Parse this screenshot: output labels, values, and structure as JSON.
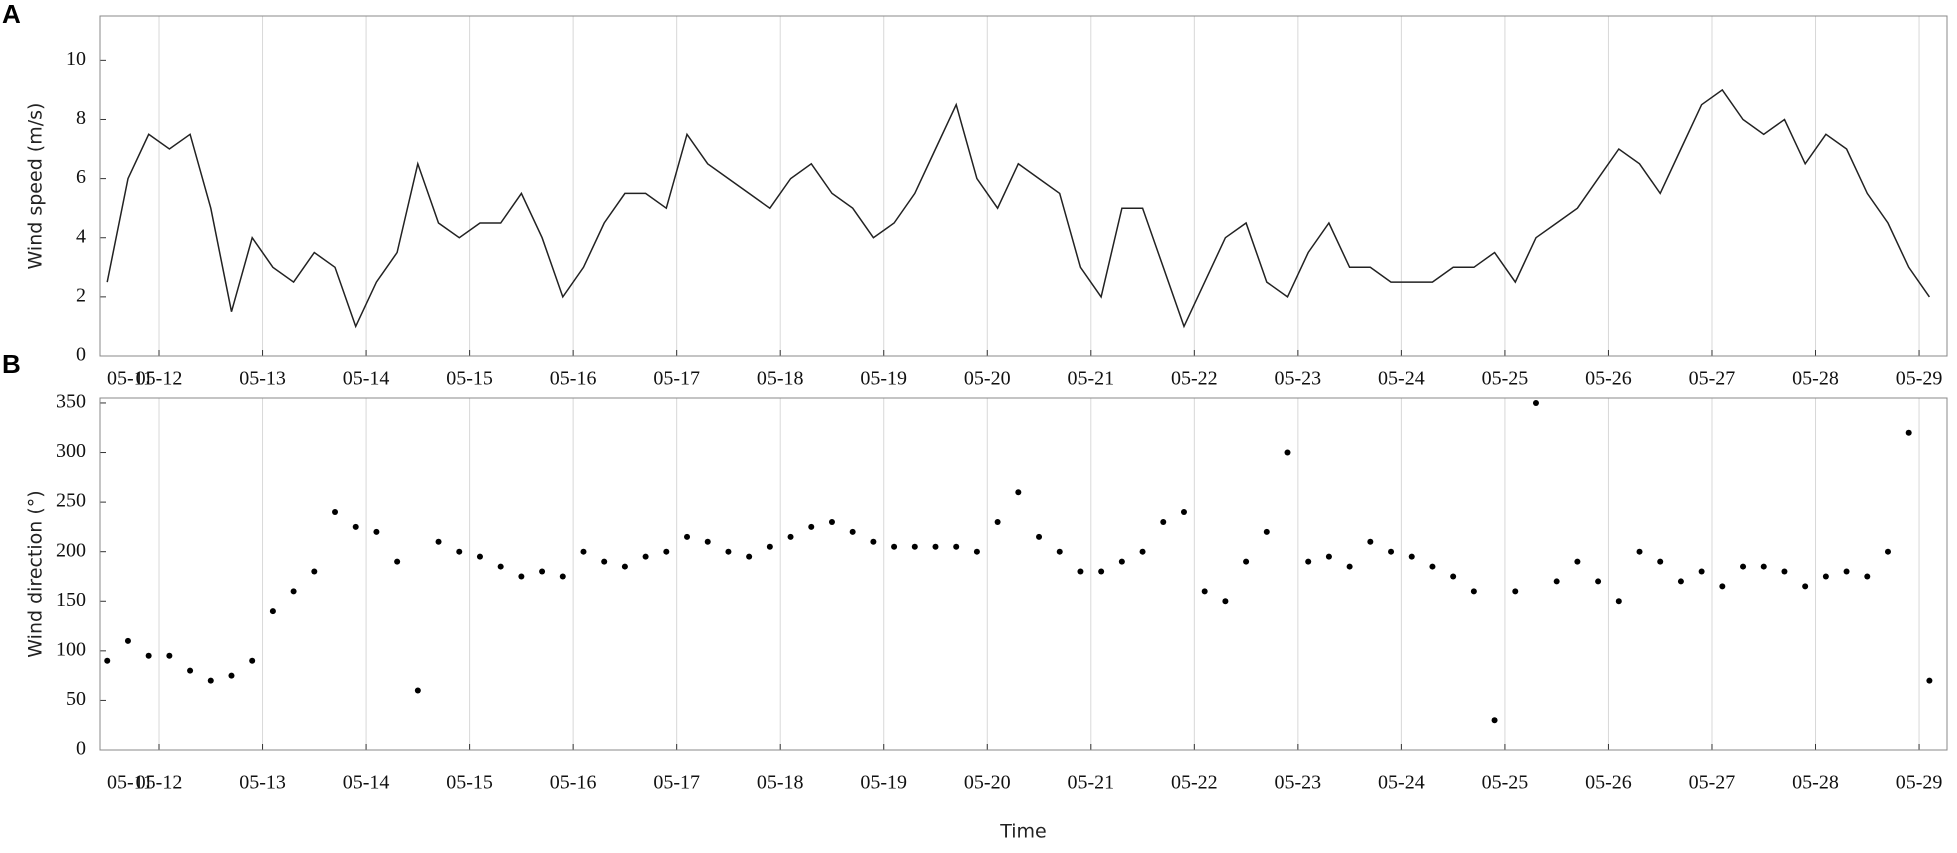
{
  "chart_data": [
    {
      "type": "line",
      "panel_label": "A",
      "ylabel": "Wind speed (m/s)",
      "color": "#222222",
      "grid": true,
      "xlim": [
        11.43,
        29.27
      ],
      "ylim": [
        0,
        11.5
      ],
      "yticks": [
        0,
        2,
        4,
        6,
        8,
        10
      ],
      "xticks": [
        {
          "value": 11.43,
          "label": "05-11"
        },
        {
          "value": 12,
          "label": "05-12"
        },
        {
          "value": 13,
          "label": "05-13"
        },
        {
          "value": 14,
          "label": "05-14"
        },
        {
          "value": 15,
          "label": "05-15"
        },
        {
          "value": 16,
          "label": "05-16"
        },
        {
          "value": 17,
          "label": "05-17"
        },
        {
          "value": 18,
          "label": "05-18"
        },
        {
          "value": 19,
          "label": "05-19"
        },
        {
          "value": 20,
          "label": "05-20"
        },
        {
          "value": 21,
          "label": "05-21"
        },
        {
          "value": 22,
          "label": "05-22"
        },
        {
          "value": 23,
          "label": "05-23"
        },
        {
          "value": 24,
          "label": "05-24"
        },
        {
          "value": 25,
          "label": "05-25"
        },
        {
          "value": 26,
          "label": "05-26"
        },
        {
          "value": 27,
          "label": "05-27"
        },
        {
          "value": 28,
          "label": "05-28"
        },
        {
          "value": 29,
          "label": "05-29"
        }
      ],
      "x": [
        11.5,
        11.7,
        11.9,
        12.1,
        12.3,
        12.5,
        12.7,
        12.9,
        13.1,
        13.3,
        13.5,
        13.7,
        13.9,
        14.1,
        14.3,
        14.5,
        14.7,
        14.9,
        15.1,
        15.3,
        15.5,
        15.7,
        15.9,
        16.1,
        16.3,
        16.5,
        16.7,
        16.9,
        17.1,
        17.3,
        17.5,
        17.7,
        17.9,
        18.1,
        18.3,
        18.5,
        18.7,
        18.9,
        19.1,
        19.3,
        19.5,
        19.7,
        19.9,
        20.1,
        20.3,
        20.5,
        20.7,
        20.9,
        21.1,
        21.3,
        21.5,
        21.7,
        21.9,
        22.1,
        22.3,
        22.5,
        22.7,
        22.9,
        23.1,
        23.3,
        23.5,
        23.7,
        23.9,
        24.1,
        24.3,
        24.5,
        24.7,
        24.9,
        25.1,
        25.3,
        25.5,
        25.7,
        25.9,
        26.1,
        26.3,
        26.5,
        26.7,
        26.9,
        27.1,
        27.3,
        27.5,
        27.7,
        27.9,
        28.1,
        28.3,
        28.5,
        28.7,
        28.9,
        29.1
      ],
      "values": [
        2.5,
        6,
        7.5,
        7,
        7.5,
        5,
        1.5,
        4,
        3,
        2.5,
        3.5,
        3,
        1,
        2.5,
        3.5,
        6.5,
        4.5,
        4,
        4.5,
        4.5,
        5.5,
        4,
        2,
        3,
        4.5,
        5.5,
        5.5,
        5,
        7.5,
        6.5,
        6,
        5.5,
        5,
        6,
        6.5,
        5.5,
        5,
        4,
        4.5,
        5.5,
        7,
        8.5,
        6,
        5,
        6.5,
        6,
        5.5,
        3,
        2,
        5,
        5,
        3,
        1,
        2.5,
        4,
        4.5,
        2.5,
        2,
        3.5,
        4.5,
        3,
        3,
        2.5,
        2.5,
        2.5,
        3,
        3,
        3.5,
        2.5,
        4,
        4.5,
        5,
        6,
        7,
        6.5,
        5.5,
        7,
        8.5,
        9,
        8,
        7.5,
        8,
        6.5,
        7.5,
        7,
        5.5,
        4.5,
        3,
        2
      ]
    },
    {
      "type": "scatter",
      "panel_label": "B",
      "ylabel": "Wind direction (°)",
      "xlabel": "Time",
      "color": "#000000",
      "grid": true,
      "xlim": [
        11.43,
        29.27
      ],
      "ylim": [
        0,
        355
      ],
      "yticks": [
        0,
        50,
        100,
        150,
        200,
        250,
        300,
        350
      ],
      "xticks": [
        {
          "value": 11.43,
          "label": "05-11"
        },
        {
          "value": 12,
          "label": "05-12"
        },
        {
          "value": 13,
          "label": "05-13"
        },
        {
          "value": 14,
          "label": "05-14"
        },
        {
          "value": 15,
          "label": "05-15"
        },
        {
          "value": 16,
          "label": "05-16"
        },
        {
          "value": 17,
          "label": "05-17"
        },
        {
          "value": 18,
          "label": "05-18"
        },
        {
          "value": 19,
          "label": "05-19"
        },
        {
          "value": 20,
          "label": "05-20"
        },
        {
          "value": 21,
          "label": "05-21"
        },
        {
          "value": 22,
          "label": "05-22"
        },
        {
          "value": 23,
          "label": "05-23"
        },
        {
          "value": 24,
          "label": "05-24"
        },
        {
          "value": 25,
          "label": "05-25"
        },
        {
          "value": 26,
          "label": "05-26"
        },
        {
          "value": 27,
          "label": "05-27"
        },
        {
          "value": 28,
          "label": "05-28"
        },
        {
          "value": 29,
          "label": "05-29"
        }
      ],
      "x": [
        11.5,
        11.7,
        11.9,
        12.1,
        12.3,
        12.5,
        12.7,
        12.9,
        13.1,
        13.3,
        13.5,
        13.7,
        13.9,
        14.1,
        14.3,
        14.5,
        14.7,
        14.9,
        15.1,
        15.3,
        15.5,
        15.7,
        15.9,
        16.1,
        16.3,
        16.5,
        16.7,
        16.9,
        17.1,
        17.3,
        17.5,
        17.7,
        17.9,
        18.1,
        18.3,
        18.5,
        18.7,
        18.9,
        19.1,
        19.3,
        19.5,
        19.7,
        19.9,
        20.1,
        20.3,
        20.5,
        20.7,
        20.9,
        21.1,
        21.3,
        21.5,
        21.7,
        21.9,
        22.1,
        22.3,
        22.5,
        22.7,
        22.9,
        23.1,
        23.3,
        23.5,
        23.7,
        23.9,
        24.1,
        24.3,
        24.5,
        24.7,
        24.9,
        25.1,
        25.3,
        25.5,
        25.7,
        25.9,
        26.1,
        26.3,
        26.5,
        26.7,
        26.9,
        27.1,
        27.3,
        27.5,
        27.7,
        27.9,
        28.1,
        28.3,
        28.5,
        28.7,
        28.9,
        29.1
      ],
      "values": [
        90,
        110,
        95,
        95,
        80,
        70,
        75,
        90,
        140,
        160,
        180,
        240,
        225,
        220,
        190,
        60,
        210,
        200,
        195,
        185,
        175,
        180,
        175,
        200,
        190,
        185,
        195,
        200,
        215,
        210,
        200,
        195,
        205,
        215,
        225,
        230,
        220,
        210,
        205,
        205,
        205,
        205,
        200,
        230,
        260,
        215,
        200,
        180,
        180,
        190,
        200,
        230,
        240,
        160,
        150,
        190,
        220,
        300,
        190,
        195,
        185,
        210,
        200,
        195,
        185,
        175,
        160,
        30,
        160,
        350,
        170,
        190,
        170,
        150,
        200,
        190,
        170,
        180,
        165,
        185,
        185,
        180,
        165,
        175,
        180,
        175,
        200,
        320,
        70
      ]
    }
  ]
}
